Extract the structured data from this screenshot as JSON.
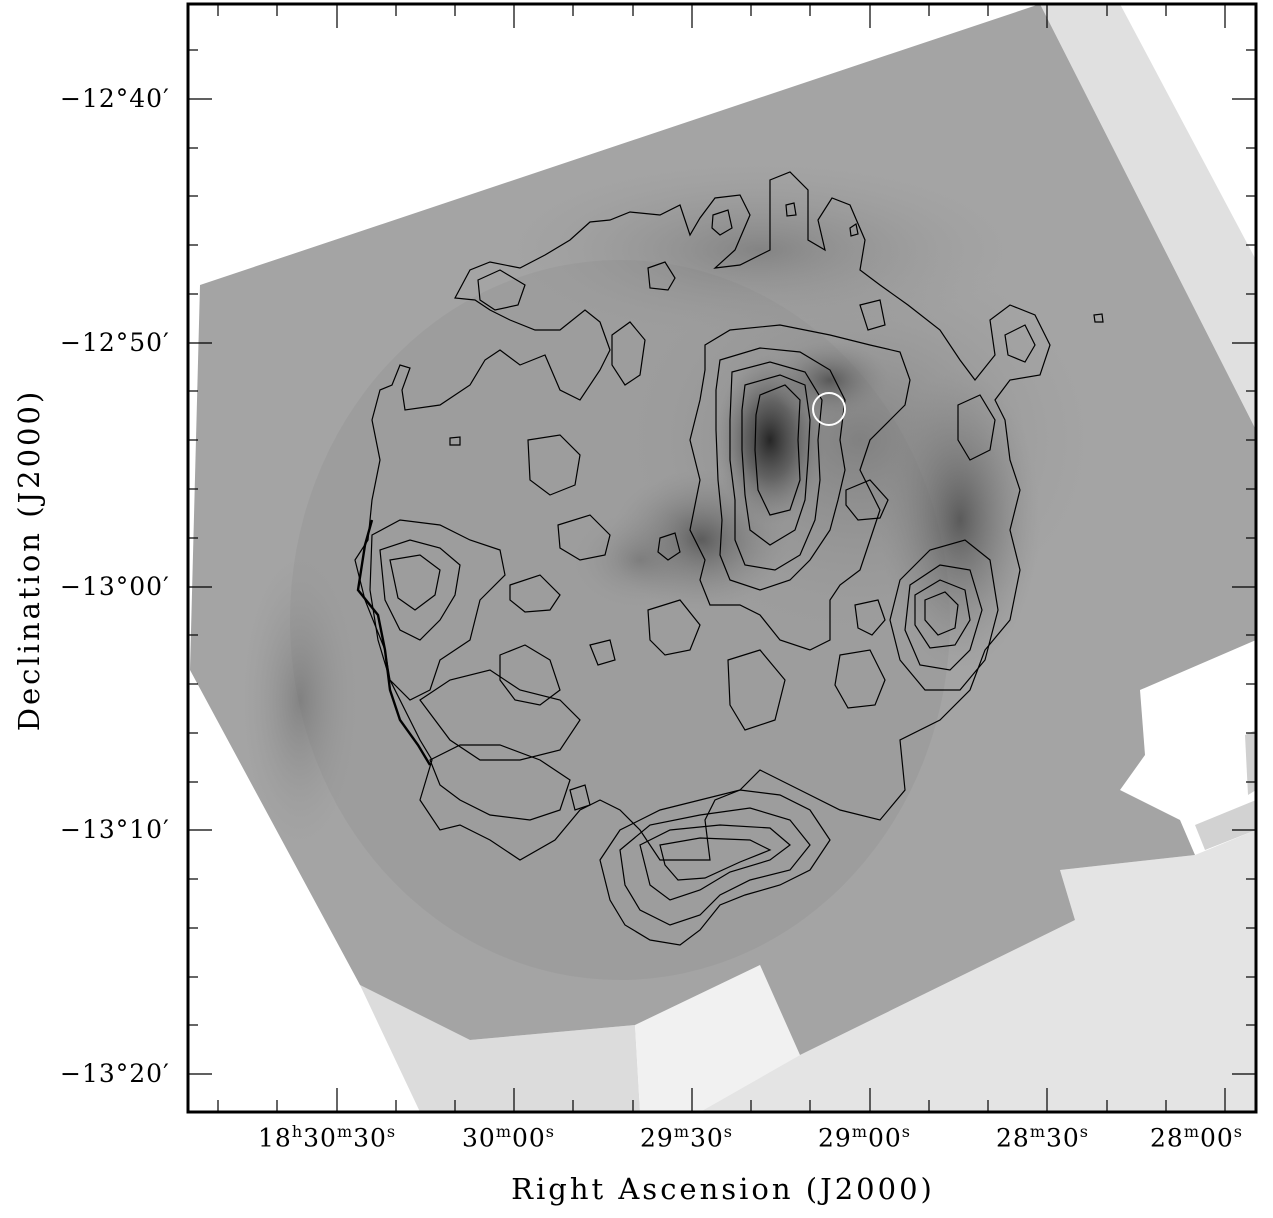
{
  "axes": {
    "xlabel": "Right Ascension (J2000)",
    "ylabel": "Declination (J2000)",
    "y_ticks": [
      "−12°40′",
      "−12°50′",
      "−13°00′",
      "−13°10′",
      "−13°20′"
    ],
    "x_ticks": [
      {
        "h": "18",
        "m": "30",
        "s": "30",
        "parts": [
          "h",
          "m",
          "s"
        ]
      },
      {
        "m": "30",
        "s": "00",
        "parts": [
          "m",
          "s"
        ]
      },
      {
        "m": "29",
        "s": "30",
        "parts": [
          "m",
          "s"
        ]
      },
      {
        "m": "29",
        "s": "00",
        "parts": [
          "m",
          "s"
        ]
      },
      {
        "m": "28",
        "s": "30",
        "parts": [
          "m",
          "s"
        ]
      },
      {
        "m": "28",
        "s": "00",
        "parts": [
          "m",
          "s"
        ]
      }
    ]
  },
  "image": {
    "description_colors": {
      "background": "#ffffff",
      "field": "#9c9c9c",
      "emission_peak": "#2a2a2a",
      "uncovered": "#dcdcdc"
    },
    "marker": {
      "type": "circle",
      "color": "#ffffff"
    }
  }
}
